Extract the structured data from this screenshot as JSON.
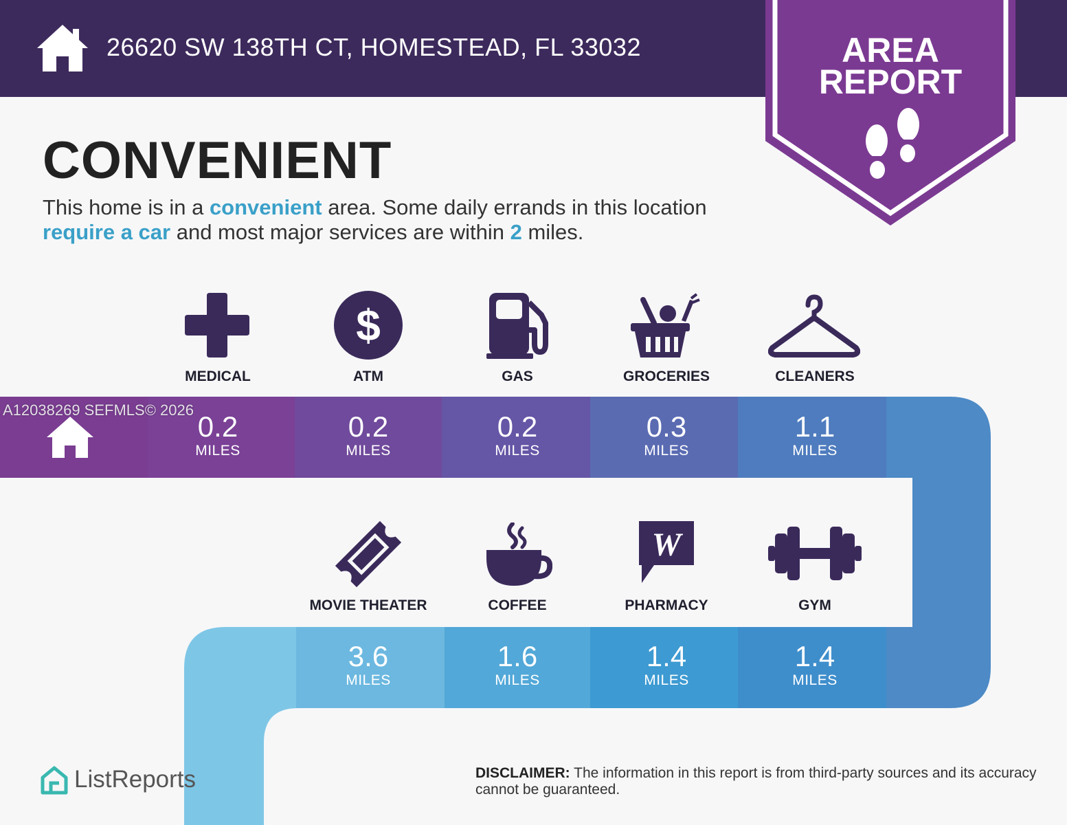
{
  "header": {
    "address": "26620 SW 138TH CT, HOMESTEAD, FL 33032",
    "home_icon": "home-icon"
  },
  "badge": {
    "line1": "AREA",
    "line2": "REPORT",
    "icon": "footprints-icon"
  },
  "headline": "CONVENIENT",
  "summary": {
    "part1": "This home is in a ",
    "highlight1": "convenient",
    "part2": " area. Some daily errands in this location ",
    "highlight2": "require a car",
    "part3": " and most major services are within ",
    "highlight3": "2",
    "part4": " miles."
  },
  "watermark": "A12038269  SEFMLS© 2026",
  "unit": "MILES",
  "row1": [
    {
      "label": "MEDICAL",
      "distance": "0.2",
      "icon": "medical-cross-icon"
    },
    {
      "label": "ATM",
      "distance": "0.2",
      "icon": "dollar-icon"
    },
    {
      "label": "GAS",
      "distance": "0.2",
      "icon": "gas-pump-icon"
    },
    {
      "label": "GROCERIES",
      "distance": "0.3",
      "icon": "grocery-basket-icon"
    },
    {
      "label": "CLEANERS",
      "distance": "1.1",
      "icon": "hanger-icon"
    }
  ],
  "row2": [
    {
      "label": "MOVIE THEATER",
      "distance": "3.6",
      "icon": "ticket-icon"
    },
    {
      "label": "COFFEE",
      "distance": "1.6",
      "icon": "coffee-cup-icon"
    },
    {
      "label": "PHARMACY",
      "distance": "1.4",
      "icon": "pharmacy-icon"
    },
    {
      "label": "GYM",
      "distance": "1.4",
      "icon": "dumbbell-icon"
    }
  ],
  "colors": {
    "header": "#3d2a5c",
    "badge": "#7b3a92",
    "icons": "#3a2a5a",
    "highlight": "#3aa0c8",
    "road_purple": "#7a3f92",
    "road_blue": "#4a88c4",
    "road_light": "#7ec6e6"
  },
  "footer": {
    "brand": "ListReports",
    "disclaimer_label": "DISCLAIMER:",
    "disclaimer_text": " The information in this report is from third-party sources and its accuracy cannot be guaranteed."
  },
  "pharmacy_mark": "W"
}
